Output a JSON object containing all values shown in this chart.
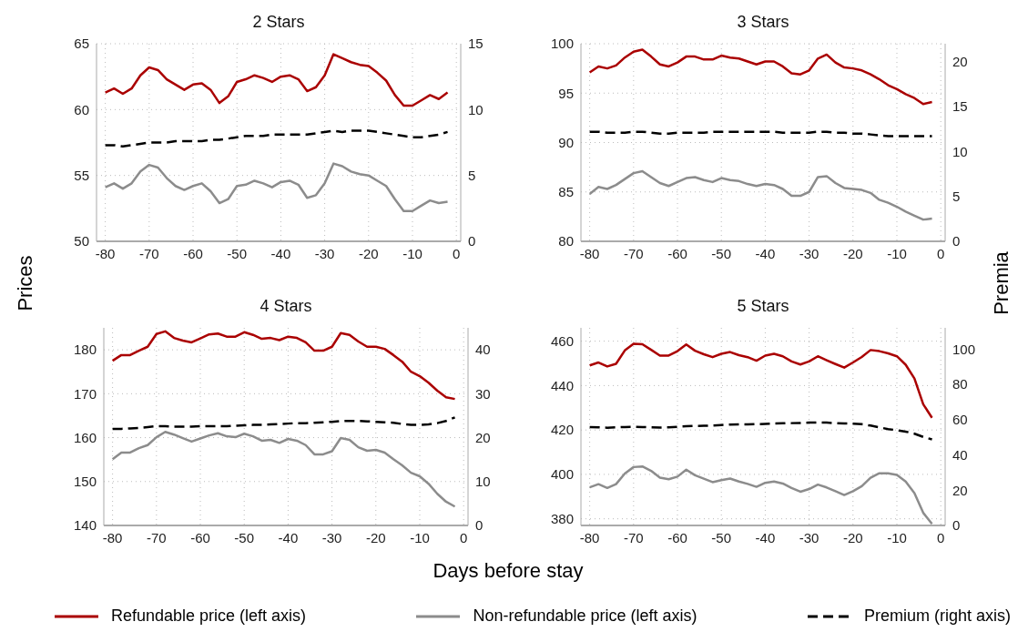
{
  "chart_data": [
    {
      "type": "line",
      "title": "2 Stars",
      "xlabel": "Days before stay",
      "ylabel": "Prices",
      "y2label": "Premia",
      "legend": "bottom",
      "grid": true,
      "marker": "none",
      "x": [
        -80,
        -78,
        -76,
        -74,
        -72,
        -70,
        -68,
        -66,
        -64,
        -62,
        -60,
        -58,
        -56,
        -54,
        -52,
        -50,
        -48,
        -46,
        -44,
        -42,
        -40,
        -38,
        -36,
        -34,
        -32,
        -30,
        -28,
        -26,
        -24,
        -22,
        -20,
        -18,
        -16,
        -14,
        -12,
        -10,
        -8,
        -6,
        -4,
        -2
      ],
      "xlim": [
        -82,
        1
      ],
      "xticks": [
        -80,
        -70,
        -60,
        -50,
        -40,
        -30,
        -20,
        -10,
        0
      ],
      "ylim": [
        50,
        65
      ],
      "yticks": [
        50,
        55,
        60,
        65
      ],
      "y2lim": [
        0,
        15
      ],
      "y2ticks": [
        0,
        5,
        10,
        15
      ],
      "series": [
        {
          "name": "Refundable price (left axis)",
          "color": "#aa0000",
          "line_style": "solid",
          "values": [
            61.3,
            61.6,
            61.2,
            61.6,
            62.6,
            63.2,
            63.0,
            62.3,
            61.9,
            61.5,
            61.9,
            62.0,
            61.5,
            60.5,
            61.0,
            62.1,
            62.3,
            62.6,
            62.4,
            62.1,
            62.5,
            62.6,
            62.3,
            61.4,
            61.7,
            62.6,
            64.2,
            63.9,
            63.6,
            63.4,
            63.3,
            62.8,
            62.2,
            61.1,
            60.3,
            60.3,
            60.7,
            61.1,
            60.8,
            61.3
          ]
        },
        {
          "name": "Non-refundable price (left axis)",
          "color": "#8c8c8c",
          "line_style": "solid",
          "values": [
            54.1,
            54.4,
            54.0,
            54.4,
            55.3,
            55.8,
            55.6,
            54.8,
            54.2,
            53.9,
            54.2,
            54.4,
            53.8,
            52.9,
            53.2,
            54.2,
            54.3,
            54.6,
            54.4,
            54.1,
            54.5,
            54.6,
            54.3,
            53.3,
            53.5,
            54.4,
            55.9,
            55.7,
            55.3,
            55.1,
            55.0,
            54.6,
            54.2,
            53.2,
            52.3,
            52.3,
            52.7,
            53.1,
            52.9,
            53.0
          ]
        },
        {
          "name": "Premium (right axis)",
          "color": "#000000",
          "line_style": "dashed",
          "axis": "y2",
          "values": [
            7.3,
            7.3,
            7.2,
            7.3,
            7.4,
            7.5,
            7.5,
            7.5,
            7.6,
            7.6,
            7.6,
            7.6,
            7.7,
            7.7,
            7.8,
            7.9,
            8.0,
            8.0,
            8.0,
            8.1,
            8.1,
            8.1,
            8.1,
            8.1,
            8.2,
            8.3,
            8.4,
            8.3,
            8.4,
            8.4,
            8.4,
            8.3,
            8.2,
            8.1,
            8.0,
            7.9,
            7.9,
            8.0,
            8.1,
            8.3
          ]
        }
      ]
    },
    {
      "type": "line",
      "title": "3 Stars",
      "grid": true,
      "marker": "none",
      "x": [
        -80,
        -78,
        -76,
        -74,
        -72,
        -70,
        -68,
        -66,
        -64,
        -62,
        -60,
        -58,
        -56,
        -54,
        -52,
        -50,
        -48,
        -46,
        -44,
        -42,
        -40,
        -38,
        -36,
        -34,
        -32,
        -30,
        -28,
        -26,
        -24,
        -22,
        -20,
        -18,
        -16,
        -14,
        -12,
        -10,
        -8,
        -6,
        -4,
        -2
      ],
      "xlim": [
        -82,
        1
      ],
      "xticks": [
        -80,
        -70,
        -60,
        -50,
        -40,
        -30,
        -20,
        -10,
        0
      ],
      "ylim": [
        80,
        100
      ],
      "yticks": [
        80,
        85,
        90,
        95,
        100
      ],
      "y2lim": [
        0,
        22
      ],
      "y2ticks": [
        0,
        5,
        10,
        15,
        20
      ],
      "series": [
        {
          "color": "#aa0000",
          "line_style": "solid",
          "values": [
            97.1,
            97.7,
            97.5,
            97.8,
            98.6,
            99.2,
            99.4,
            98.7,
            97.9,
            97.7,
            98.1,
            98.7,
            98.7,
            98.4,
            98.4,
            98.8,
            98.6,
            98.5,
            98.2,
            97.9,
            98.2,
            98.2,
            97.7,
            97.0,
            96.9,
            97.3,
            98.5,
            98.9,
            98.1,
            97.6,
            97.5,
            97.3,
            96.9,
            96.4,
            95.8,
            95.4,
            94.9,
            94.5,
            93.9,
            94.1
          ]
        },
        {
          "color": "#8c8c8c",
          "line_style": "solid",
          "values": [
            84.8,
            85.5,
            85.3,
            85.7,
            86.3,
            86.9,
            87.1,
            86.5,
            85.9,
            85.6,
            86.0,
            86.4,
            86.5,
            86.2,
            86.0,
            86.4,
            86.2,
            86.1,
            85.8,
            85.6,
            85.8,
            85.7,
            85.3,
            84.6,
            84.6,
            85.0,
            86.5,
            86.6,
            85.9,
            85.4,
            85.3,
            85.2,
            84.9,
            84.2,
            83.9,
            83.5,
            83.0,
            82.6,
            82.2,
            82.3
          ]
        },
        {
          "color": "#000000",
          "line_style": "dashed",
          "axis": "y2",
          "values": [
            12.2,
            12.2,
            12.1,
            12.1,
            12.1,
            12.2,
            12.2,
            12.1,
            12.0,
            12.0,
            12.1,
            12.1,
            12.1,
            12.1,
            12.2,
            12.2,
            12.2,
            12.2,
            12.2,
            12.2,
            12.2,
            12.2,
            12.1,
            12.1,
            12.1,
            12.1,
            12.2,
            12.2,
            12.1,
            12.1,
            12.0,
            12.0,
            11.9,
            11.8,
            11.7,
            11.7,
            11.7,
            11.7,
            11.7,
            11.7
          ]
        }
      ]
    },
    {
      "type": "line",
      "title": "4 Stars",
      "grid": true,
      "marker": "none",
      "x": [
        -80,
        -78,
        -76,
        -74,
        -72,
        -70,
        -68,
        -66,
        -64,
        -62,
        -60,
        -58,
        -56,
        -54,
        -52,
        -50,
        -48,
        -46,
        -44,
        -42,
        -40,
        -38,
        -36,
        -34,
        -32,
        -30,
        -28,
        -26,
        -24,
        -22,
        -20,
        -18,
        -16,
        -14,
        -12,
        -10,
        -8,
        -6,
        -4,
        -2
      ],
      "xlim": [
        -82,
        1
      ],
      "xticks": [
        -80,
        -70,
        -60,
        -50,
        -40,
        -30,
        -20,
        -10,
        0
      ],
      "ylim": [
        140,
        185
      ],
      "yticks": [
        140,
        150,
        160,
        170,
        180
      ],
      "y2lim": [
        0,
        45
      ],
      "y2ticks": [
        0,
        10,
        20,
        30,
        40
      ],
      "series": [
        {
          "color": "#aa0000",
          "line_style": "solid",
          "values": [
            177.5,
            178.8,
            178.8,
            179.8,
            180.7,
            183.6,
            184.2,
            182.7,
            182.1,
            181.7,
            182.6,
            183.5,
            183.7,
            183.0,
            183.0,
            184.0,
            183.4,
            182.5,
            182.7,
            182.2,
            183.0,
            182.7,
            181.7,
            179.8,
            179.8,
            180.7,
            183.8,
            183.4,
            181.9,
            180.7,
            180.7,
            180.2,
            178.8,
            177.3,
            175.0,
            174.0,
            172.5,
            170.7,
            169.2,
            168.8
          ]
        },
        {
          "color": "#8c8c8c",
          "line_style": "solid",
          "values": [
            155.1,
            156.6,
            156.6,
            157.6,
            158.3,
            160.1,
            161.3,
            160.7,
            159.9,
            159.1,
            159.8,
            160.5,
            161.0,
            160.3,
            160.1,
            160.9,
            160.3,
            159.3,
            159.5,
            158.8,
            159.7,
            159.3,
            158.3,
            156.2,
            156.2,
            156.9,
            159.9,
            159.5,
            157.8,
            157.0,
            157.2,
            156.6,
            155.1,
            153.7,
            152.0,
            151.2,
            149.5,
            147.2,
            145.4,
            144.3
          ]
        },
        {
          "color": "#000000",
          "line_style": "dashed",
          "axis": "y2",
          "values": [
            22.0,
            22.0,
            22.1,
            22.2,
            22.4,
            22.6,
            22.6,
            22.5,
            22.5,
            22.5,
            22.6,
            22.6,
            22.6,
            22.6,
            22.7,
            22.8,
            22.9,
            22.9,
            23.0,
            23.1,
            23.2,
            23.3,
            23.3,
            23.4,
            23.5,
            23.6,
            23.8,
            23.8,
            23.8,
            23.7,
            23.6,
            23.5,
            23.4,
            23.1,
            22.9,
            22.9,
            23.0,
            23.3,
            23.8,
            24.6
          ]
        }
      ]
    },
    {
      "type": "line",
      "title": "5 Stars",
      "grid": true,
      "marker": "none",
      "x": [
        -80,
        -78,
        -76,
        -74,
        -72,
        -70,
        -68,
        -66,
        -64,
        -62,
        -60,
        -58,
        -56,
        -54,
        -52,
        -50,
        -48,
        -46,
        -44,
        -42,
        -40,
        -38,
        -36,
        -34,
        -32,
        -30,
        -28,
        -26,
        -24,
        -22,
        -20,
        -18,
        -16,
        -14,
        -12,
        -10,
        -8,
        -6,
        -4,
        -2
      ],
      "xlim": [
        -82,
        1
      ],
      "xticks": [
        -80,
        -70,
        -60,
        -50,
        -40,
        -30,
        -20,
        -10,
        0
      ],
      "ylim": [
        377,
        466
      ],
      "yticks": [
        380,
        400,
        420,
        440,
        460
      ],
      "y2lim": [
        0,
        112
      ],
      "y2ticks": [
        0,
        20,
        40,
        60,
        80,
        100
      ],
      "series": [
        {
          "color": "#aa0000",
          "line_style": "solid",
          "values": [
            449.1,
            450.4,
            448.6,
            449.8,
            455.8,
            458.8,
            458.6,
            456.1,
            453.5,
            453.5,
            455.5,
            458.5,
            455.7,
            454.1,
            452.8,
            454.3,
            455.1,
            453.7,
            452.8,
            451.2,
            453.5,
            454.3,
            453.2,
            450.9,
            449.5,
            450.9,
            453.2,
            451.4,
            449.7,
            448.1,
            450.4,
            452.9,
            456.0,
            455.5,
            454.5,
            453.2,
            449.4,
            443.2,
            431.6,
            425.5
          ]
        },
        {
          "color": "#8c8c8c",
          "line_style": "solid",
          "values": [
            394.2,
            395.6,
            393.9,
            395.6,
            400.4,
            403.3,
            403.6,
            401.6,
            398.5,
            397.8,
            399.0,
            402.1,
            399.6,
            398.1,
            396.5,
            397.4,
            398.1,
            396.8,
            395.7,
            394.4,
            396.2,
            396.8,
            395.9,
            393.9,
            392.2,
            393.4,
            395.4,
            394.1,
            392.4,
            390.7,
            392.4,
            394.7,
            398.5,
            400.5,
            400.5,
            399.8,
            396.8,
            391.6,
            382.7,
            377.7
          ]
        },
        {
          "color": "#000000",
          "line_style": "dashed",
          "axis": "y2",
          "values": [
            55.8,
            55.6,
            55.4,
            55.6,
            55.8,
            55.9,
            55.8,
            55.6,
            55.5,
            55.6,
            55.9,
            56.2,
            56.4,
            56.5,
            56.6,
            56.9,
            57.2,
            57.3,
            57.3,
            57.4,
            57.6,
            57.8,
            57.9,
            58.0,
            58.1,
            58.3,
            58.4,
            58.3,
            58.0,
            57.8,
            57.7,
            57.4,
            56.6,
            55.6,
            54.6,
            54.0,
            53.2,
            52.0,
            50.2,
            48.8
          ]
        }
      ]
    }
  ]
}
